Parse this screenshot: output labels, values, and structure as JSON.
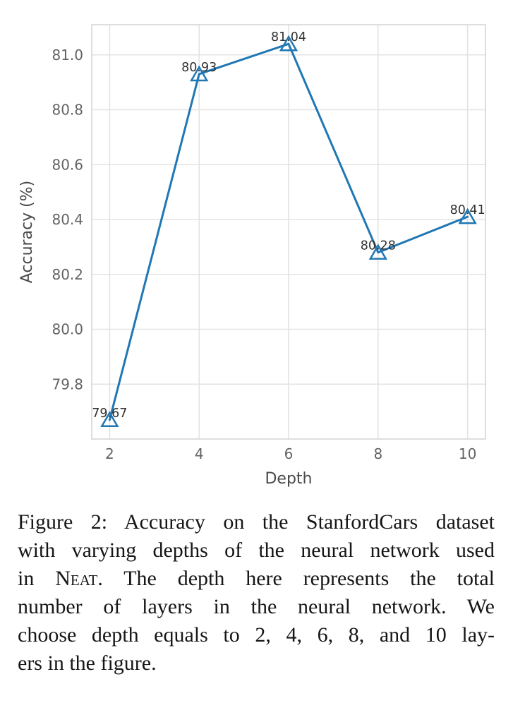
{
  "chart_data": {
    "type": "line",
    "x": [
      2,
      4,
      6,
      8,
      10
    ],
    "y": [
      79.67,
      80.93,
      81.04,
      80.28,
      80.41
    ],
    "point_labels": [
      "79.67",
      "80.93",
      "81.04",
      "80.28",
      "80.41"
    ],
    "xlabel": "Depth",
    "ylabel": "Accuracy (%)",
    "xticks": [
      2,
      4,
      6,
      8,
      10
    ],
    "xtick_labels": [
      "2",
      "4",
      "6",
      "8",
      "10"
    ],
    "yticks": [
      79.8,
      80.0,
      80.2,
      80.4,
      80.6,
      80.8,
      81.0
    ],
    "ytick_labels": [
      "79.8",
      "80.0",
      "80.2",
      "80.4",
      "80.6",
      "80.8",
      "81.0"
    ],
    "xlim": [
      1.6,
      10.4
    ],
    "ylim": [
      79.6,
      81.11
    ],
    "grid": true,
    "legend": "none",
    "marker": "triangle-up-open",
    "colors": {
      "line": "#1f77b4",
      "marker_edge": "#1f77b4",
      "grid": "#e3e3e3",
      "spine": "#d6d6d6",
      "tick_label": "#636363",
      "axis_label": "#4a4a4a",
      "annotation": "#303030",
      "background": "#ffffff"
    }
  },
  "caption": {
    "figure_label": "Figure 2:",
    "smallcaps_word": "Neat",
    "lines": [
      "Figure 2:  Accuracy on the StanfordCars dataset",
      "with varying depths of the neural network used",
      "in Neat.  The depth here represents the total",
      "number of layers in the neural network.  We",
      "choose depth equals to 2, 4, 6, 8, and 10 lay-",
      "ers in the figure."
    ],
    "full_text": "Figure 2: Accuracy on the StanfordCars dataset with varying depths of the neural network used in Neat. The depth here represents the total number of layers in the neural network. We choose depth equals to 2, 4, 6, 8, and 10 layers in the figure."
  }
}
